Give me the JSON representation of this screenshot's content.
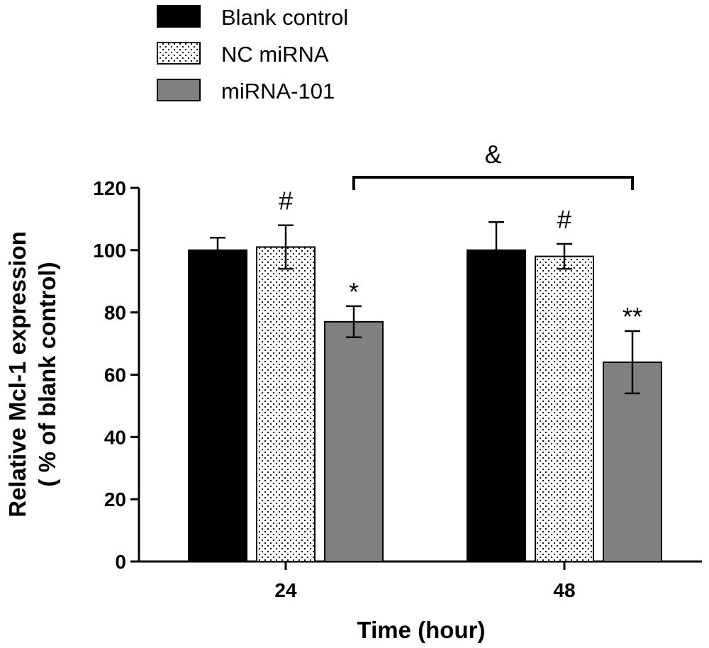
{
  "chart_data": {
    "type": "bar",
    "title": "",
    "xlabel": "Time (hour)",
    "ylabel_line1": "Relative Mcl-1 expression",
    "ylabel_line2": "( % of blank control)",
    "categories": [
      "24",
      "48"
    ],
    "ylim": [
      0,
      120
    ],
    "yticks": [
      0,
      20,
      40,
      60,
      80,
      100,
      120
    ],
    "grid": false,
    "legend_position": "top-left",
    "series": [
      {
        "name": "Blank control",
        "values": [
          100,
          100
        ],
        "errors": [
          4,
          9
        ],
        "fill": "#000000",
        "pattern": "solid"
      },
      {
        "name": "NC miRNA",
        "values": [
          101,
          98
        ],
        "errors": [
          7,
          4
        ],
        "fill": "#ffffff",
        "pattern": "dots"
      },
      {
        "name": "miRNA-101",
        "values": [
          77,
          64
        ],
        "errors": [
          5,
          10
        ],
        "fill": "#808080",
        "pattern": "solid"
      }
    ],
    "annotations": [
      {
        "text": "#",
        "category": "24",
        "series": "NC miRNA"
      },
      {
        "text": "*",
        "category": "24",
        "series": "miRNA-101"
      },
      {
        "text": "#",
        "category": "48",
        "series": "NC miRNA"
      },
      {
        "text": "**",
        "category": "48",
        "series": "miRNA-101"
      }
    ],
    "bracket": {
      "text": "&",
      "from": "24",
      "to": "48"
    }
  }
}
